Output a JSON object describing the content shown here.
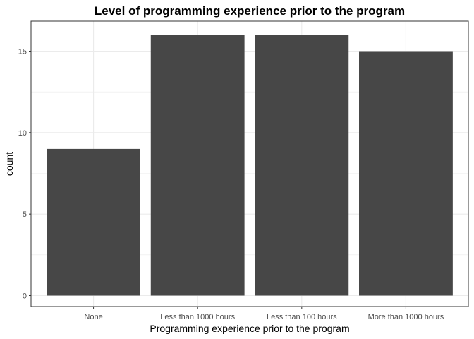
{
  "chart_data": {
    "type": "bar",
    "title": "Level of programming experience prior to the program",
    "xlabel": "Programming experience prior to the program",
    "ylabel": "count",
    "categories": [
      "None",
      "Less than 1000 hours",
      "Less than 100 hours",
      "More than 1000 hours"
    ],
    "values": [
      9,
      16,
      16,
      15
    ],
    "ylim": [
      0,
      16.8
    ],
    "yticks": [
      0,
      5,
      10,
      15
    ],
    "grid": true,
    "bar_color": "#474747",
    "grid_color": "#ebebeb",
    "border_color": "#333333"
  }
}
